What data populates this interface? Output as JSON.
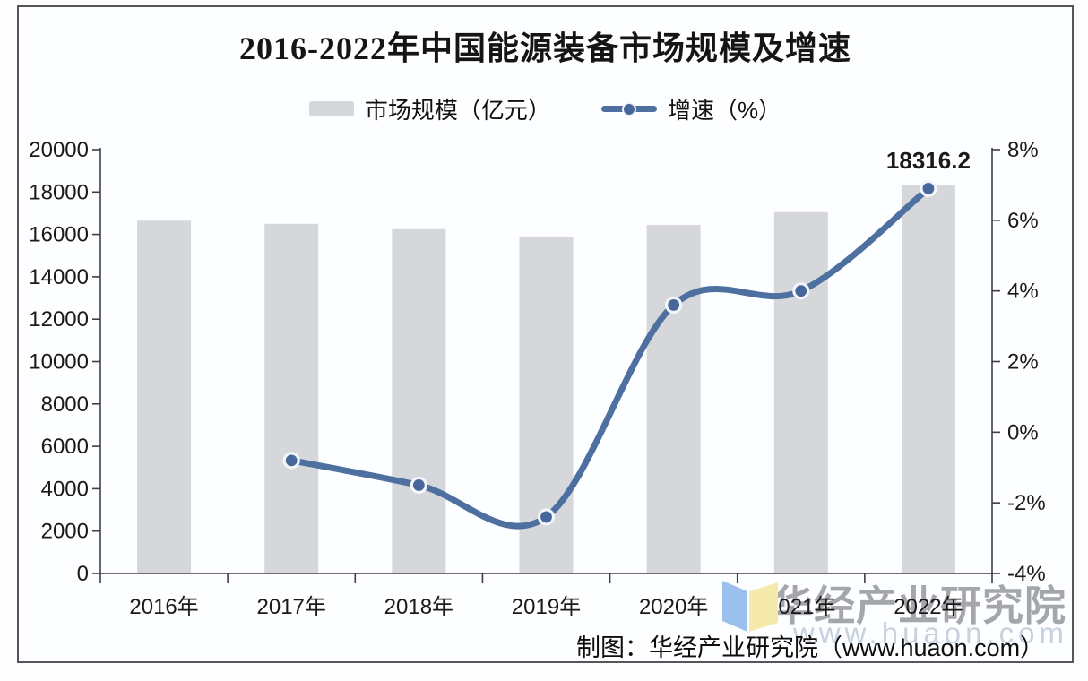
{
  "header": {
    "title": "2016-2022年中国能源装备市场规模及增速"
  },
  "legend": {
    "items": [
      {
        "label": "市场规模（亿元）",
        "marker": "bar-swatch",
        "color": "#d5d7da"
      },
      {
        "label": "增速（%）",
        "marker": "line-dot-swatch",
        "color": "#4d70a0"
      }
    ]
  },
  "chart_data": {
    "type": "bar+line combo",
    "title": "2016-2022年中国能源装备市场规模及增速",
    "categories": [
      "2016年",
      "2017年",
      "2018年",
      "2019年",
      "2020年",
      "2021年",
      "2022年"
    ],
    "series": [
      {
        "name": "市场规模（亿元）",
        "type": "bar",
        "axis": "left",
        "unit": "亿元",
        "color": "#d5d7da",
        "values": [
          16650,
          16500,
          16250,
          15900,
          16450,
          17050,
          18316.2
        ]
      },
      {
        "name": "增速（%）",
        "type": "line",
        "axis": "right",
        "unit": "%",
        "color": "#4d70a0",
        "marker_fill": "#47679b",
        "values": [
          null,
          -0.8,
          -1.5,
          -2.4,
          3.6,
          4.0,
          6.9
        ]
      }
    ],
    "left_axis": {
      "min": 0,
      "max": 20000,
      "step": 2000,
      "tick_labels": [
        "0",
        "2000",
        "4000",
        "6000",
        "8000",
        "10000",
        "12000",
        "14000",
        "16000",
        "18000",
        "20000"
      ]
    },
    "right_axis": {
      "min": -4,
      "max": 8,
      "step": 2,
      "tick_labels": [
        "8%",
        "6%",
        "4%",
        "2%",
        "0%",
        "-2%",
        "-4%"
      ]
    },
    "data_labels": [
      {
        "category": "2022年",
        "series": "市场规模（亿元）",
        "text": "18316.2"
      }
    ],
    "grid": false,
    "legend_position": "top-center"
  },
  "watermark": {
    "line1": "华经产业研究院",
    "line2": "www.huaon.com"
  },
  "footer": {
    "attribution": "制图：华经产业研究院（www.huaon.com）"
  },
  "logo": {
    "name": "huaon-open-book-logo",
    "left_color": "#9cc0ee",
    "right_color": "#f6e9ac"
  }
}
